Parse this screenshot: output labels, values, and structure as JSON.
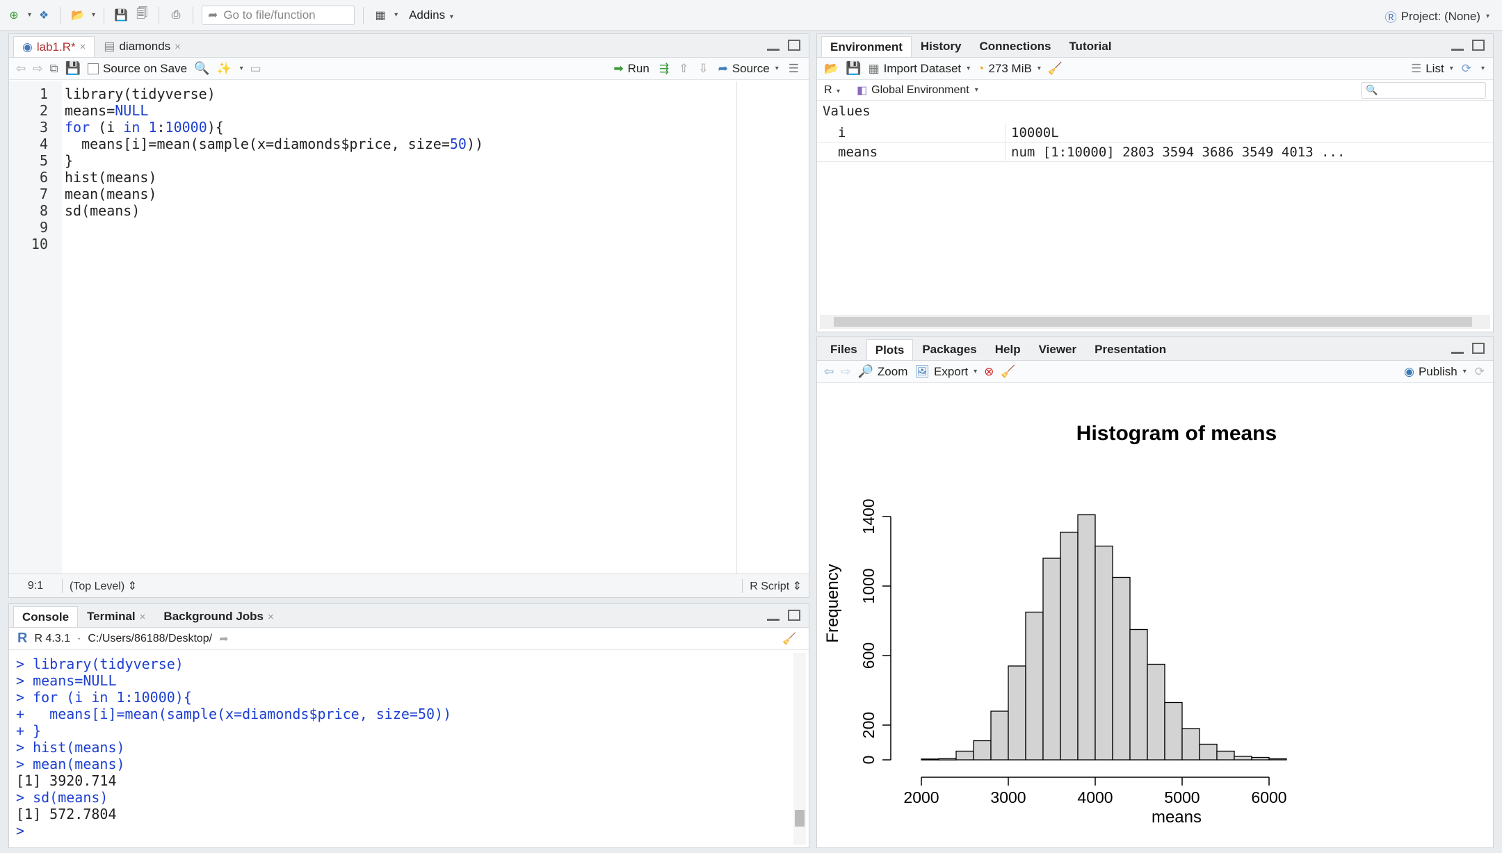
{
  "toolbar": {
    "goto_placeholder": "Go to file/function",
    "addins": "Addins",
    "project": "Project: (None)"
  },
  "editor": {
    "tabs": [
      {
        "label": "lab1.R*"
      },
      {
        "label": "diamonds"
      }
    ],
    "source_on_save": "Source on Save",
    "run": "Run",
    "source": "Source",
    "lines": [
      {
        "n": "1",
        "text": "library(tidyverse)"
      },
      {
        "n": "2",
        "text": "means=NULL"
      },
      {
        "n": "3",
        "text": "for (i in 1:10000){"
      },
      {
        "n": "4",
        "text": "  means[i]=mean(sample(x=diamonds$price, size=50))"
      },
      {
        "n": "5",
        "text": "}"
      },
      {
        "n": "6",
        "text": "hist(means)"
      },
      {
        "n": "7",
        "text": "mean(means)"
      },
      {
        "n": "8",
        "text": "sd(means)"
      },
      {
        "n": "9",
        "text": ""
      },
      {
        "n": "10",
        "text": ""
      }
    ],
    "status_pos": "9:1",
    "status_scope": "(Top Level)",
    "status_type": "R Script"
  },
  "console": {
    "tabs": [
      {
        "label": "Console"
      },
      {
        "label": "Terminal"
      },
      {
        "label": "Background Jobs"
      }
    ],
    "r_version": "R 4.3.1",
    "path": "C:/Users/86188/Desktop/",
    "lines": [
      {
        "prompt": ">",
        "text": " library(tidyverse)",
        "blue": true
      },
      {
        "prompt": ">",
        "text": " means=NULL",
        "blue": true
      },
      {
        "prompt": ">",
        "text": " for (i in 1:10000){",
        "blue": true
      },
      {
        "prompt": "+",
        "text": "   means[i]=mean(sample(x=diamonds$price, size=50))",
        "blue": true
      },
      {
        "prompt": "+",
        "text": " }",
        "blue": true
      },
      {
        "prompt": ">",
        "text": " hist(means)",
        "blue": true
      },
      {
        "prompt": ">",
        "text": " mean(means)",
        "blue": true
      },
      {
        "prompt": "",
        "text": "[1] 3920.714",
        "blue": false
      },
      {
        "prompt": ">",
        "text": " sd(means)",
        "blue": true
      },
      {
        "prompt": "",
        "text": "[1] 572.7804",
        "blue": false
      },
      {
        "prompt": ">",
        "text": " ",
        "blue": true
      }
    ]
  },
  "env": {
    "tabs": [
      {
        "label": "Environment"
      },
      {
        "label": "History"
      },
      {
        "label": "Connections"
      },
      {
        "label": "Tutorial"
      }
    ],
    "import": "Import Dataset",
    "memory": "273 MiB",
    "list": "List",
    "lang": "R",
    "scope": "Global Environment",
    "section": "Values",
    "rows": [
      {
        "name": "i",
        "value": "10000L"
      },
      {
        "name": "means",
        "value": "num [1:10000] 2803 3594 3686 3549 4013 ..."
      }
    ]
  },
  "plots": {
    "tabs": [
      {
        "label": "Files"
      },
      {
        "label": "Plots"
      },
      {
        "label": "Packages"
      },
      {
        "label": "Help"
      },
      {
        "label": "Viewer"
      },
      {
        "label": "Presentation"
      }
    ],
    "zoom": "Zoom",
    "export": "Export",
    "publish": "Publish"
  },
  "chart_data": {
    "type": "bar",
    "title": "Histogram of means",
    "xlabel": "means",
    "ylabel": "Frequency",
    "bin_width": 200,
    "bin_starts": [
      2000,
      2200,
      2400,
      2600,
      2800,
      3000,
      3200,
      3400,
      3600,
      3800,
      4000,
      4200,
      4400,
      4600,
      4800,
      5000,
      5200,
      5400,
      5600,
      5800,
      6000
    ],
    "values": [
      5,
      7,
      50,
      110,
      280,
      540,
      850,
      1160,
      1310,
      1410,
      1230,
      1050,
      750,
      550,
      330,
      180,
      90,
      50,
      20,
      14,
      6
    ],
    "xlim": [
      2000,
      6200
    ],
    "ylim": [
      0,
      1400
    ],
    "xticks": [
      "2000",
      "3000",
      "4000",
      "5000",
      "6000"
    ],
    "yticks": [
      "0",
      "200",
      "600",
      "1000",
      "1400"
    ],
    "grid": false
  }
}
